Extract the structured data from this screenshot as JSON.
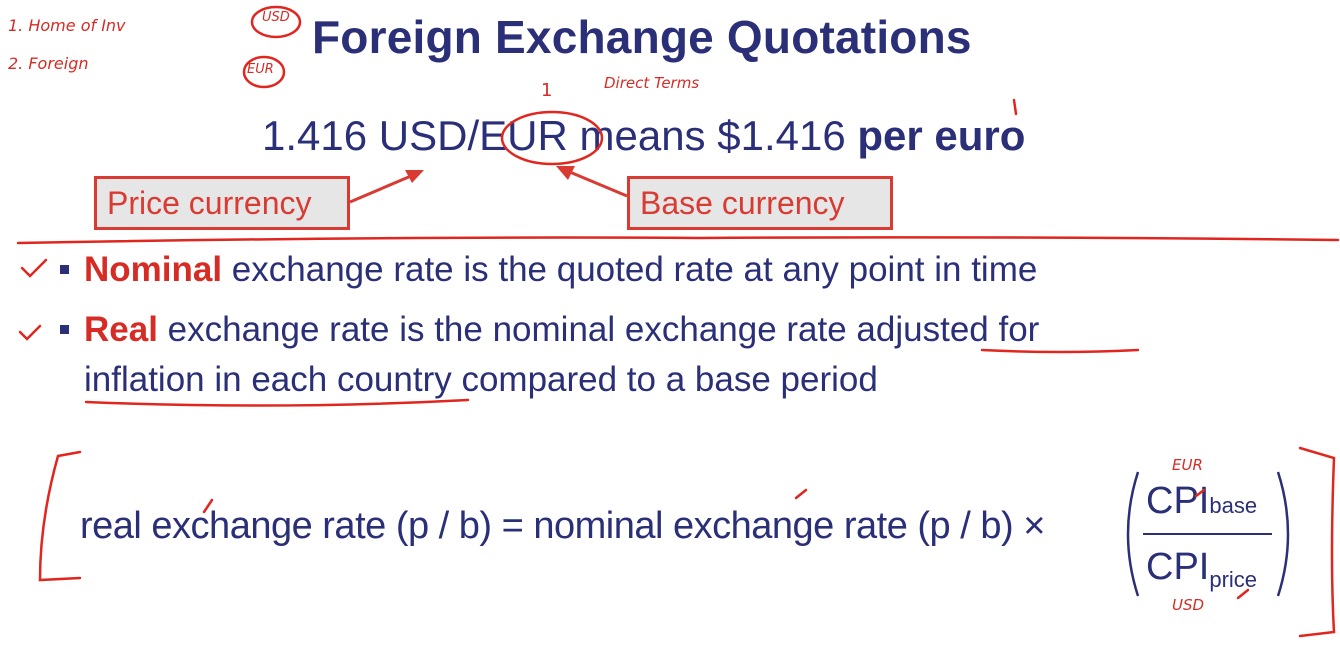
{
  "slide": {
    "title": "Foreign Exchange Quotations",
    "quote": {
      "value": "1.416",
      "pair_price": "USD/",
      "pair_base": "EUR",
      "means": "means $1.416",
      "per_euro": "per euro"
    },
    "price_currency_label": "Price currency",
    "base_currency_label": "Base currency",
    "bullets": [
      {
        "term": "Nominal",
        "text": " exchange rate is the quoted rate at any point in time"
      },
      {
        "term": "Real",
        "text": " exchange rate is the nominal exchange rate adjusted for",
        "text_line2": "inflation in each country compared to a base period"
      }
    ],
    "formula": {
      "lhs": "real exchange rate (p / b) = nominal exchange rate (p / b) ×",
      "numerator": "CPI",
      "numerator_sub": "base",
      "denominator": "CPI",
      "denominator_sub": "price"
    }
  },
  "annotations": {
    "note1": "1. Home of Inv",
    "note2": "2. Foreign",
    "circle_usd": "USD",
    "circle_eur": "EUR",
    "direct_terms": "Direct Terms",
    "mark_one": "1",
    "eur_above": "EUR",
    "usd_below": "USD"
  },
  "colors": {
    "text": "#2a2f78",
    "accent_red": "#d62c25",
    "box_fill": "#e6e6e6",
    "ink": "#e0261f"
  }
}
